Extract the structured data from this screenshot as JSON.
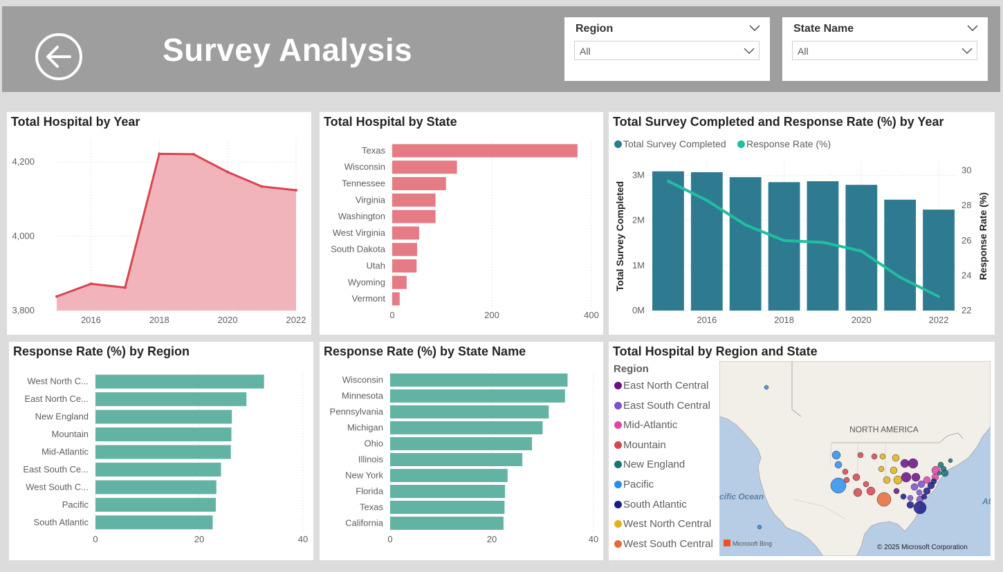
{
  "header": {
    "title": "Survey Analysis",
    "slicers": [
      {
        "label": "Region",
        "value": "All"
      },
      {
        "label": "State Name",
        "value": "All"
      }
    ]
  },
  "colors": {
    "pink_line": "#d9444f",
    "pink_area": "#f0b4ba",
    "pink_bar": "#e57b85",
    "teal_bar": "#63b3a4",
    "dark_teal": "#2e7b91",
    "teal_line": "#1fbfa0"
  },
  "chart_data": [
    {
      "id": "hospital-by-year",
      "type": "area",
      "title": "Total Hospital by Year",
      "x": [
        2015,
        2016,
        2017,
        2018,
        2019,
        2020,
        2021,
        2022
      ],
      "values": [
        3838,
        3872,
        3862,
        4222,
        4221,
        4173,
        4134,
        4124
      ],
      "x_ticks": [
        "2016",
        "2018",
        "2020",
        "2022"
      ],
      "y_ticks": [
        "3,800",
        "4,000",
        "4,200"
      ],
      "ylim": [
        3800,
        4260
      ]
    },
    {
      "id": "hospital-by-state",
      "type": "bar",
      "title": "Total Hospital by State",
      "categories": [
        "Texas",
        "Wisconsin",
        "Tennessee",
        "Virginia",
        "Washington",
        "West Virginia",
        "South Dakota",
        "Utah",
        "Wyoming",
        "Vermont"
      ],
      "values": [
        372,
        130,
        108,
        87,
        87,
        54,
        50,
        49,
        29,
        15
      ],
      "x_ticks": [
        "0",
        "200",
        "400"
      ],
      "xlim": [
        0,
        400
      ]
    },
    {
      "id": "survey-response-by-year",
      "type": "bar",
      "title": "Total Survey Completed and Response Rate (%) by Year",
      "x": [
        2015,
        2016,
        2017,
        2018,
        2019,
        2020,
        2021,
        2022
      ],
      "x_ticks": [
        "2016",
        "2018",
        "2020",
        "2022"
      ],
      "series": [
        {
          "name": "Total Survey Completed",
          "type": "bar",
          "values": [
            3.09,
            3.07,
            2.96,
            2.85,
            2.87,
            2.79,
            2.46,
            2.24
          ]
        },
        {
          "name": "Response Rate (%)",
          "type": "line",
          "values": [
            29.4,
            28.3,
            26.9,
            26.0,
            25.9,
            25.4,
            23.9,
            22.8
          ]
        }
      ],
      "y_ticks": [
        "0M",
        "1M",
        "2M",
        "3M"
      ],
      "ylim": [
        0,
        3.3
      ],
      "ylabel": "Total Survey Completed",
      "y2_ticks": [
        "22",
        "24",
        "26",
        "28",
        "30"
      ],
      "y2lim": [
        22,
        30.5
      ],
      "y2label": "Response Rate (%)",
      "legend": "top-left"
    },
    {
      "id": "response-by-region",
      "type": "bar",
      "title": "Response Rate (%) by Region",
      "categories": [
        "West North C...",
        "East North Ce...",
        "New England",
        "Mountain",
        "Mid-Atlantic",
        "East South Ce...",
        "West South C...",
        "Pacific",
        "South Atlantic"
      ],
      "values": [
        32.5,
        29.1,
        26.3,
        26.2,
        26.1,
        24.2,
        23.3,
        23.2,
        22.6
      ],
      "x_ticks": [
        "0",
        "20",
        "40"
      ],
      "xlim": [
        0,
        40
      ]
    },
    {
      "id": "response-by-state",
      "type": "bar",
      "title": "Response Rate (%) by State Name",
      "categories": [
        "Wisconsin",
        "Minnesota",
        "Pennsylvania",
        "Michigan",
        "Ohio",
        "Illinois",
        "New York",
        "Florida",
        "Texas",
        "California"
      ],
      "values": [
        34.9,
        34.4,
        31.2,
        30.0,
        27.9,
        26.0,
        23.1,
        22.6,
        22.5,
        22.3
      ],
      "x_ticks": [
        "0",
        "20",
        "40"
      ],
      "xlim": [
        0,
        40
      ]
    }
  ],
  "map": {
    "title": "Total Hospital by Region and State",
    "legend_title": "Region",
    "regions": [
      {
        "name": "East North Central",
        "color": "#6b0f8a"
      },
      {
        "name": "East South Central",
        "color": "#7e4fd1"
      },
      {
        "name": "Mid-Atlantic",
        "color": "#e044a7"
      },
      {
        "name": "Mountain",
        "color": "#d64550"
      },
      {
        "name": "New England",
        "color": "#197278"
      },
      {
        "name": "Pacific",
        "color": "#2b8ff0"
      },
      {
        "name": "South Atlantic",
        "color": "#1a1a8c"
      },
      {
        "name": "West North Central",
        "color": "#e3b21b"
      },
      {
        "name": "West South Central",
        "color": "#e86a3a"
      }
    ],
    "labels": {
      "continent": "NORTH AMERICA",
      "ocean": "cific Ocean",
      "ocean_right": "At",
      "bing": "Microsoft Bing",
      "copyright": "© 2025 Microsoft Corporation"
    }
  }
}
